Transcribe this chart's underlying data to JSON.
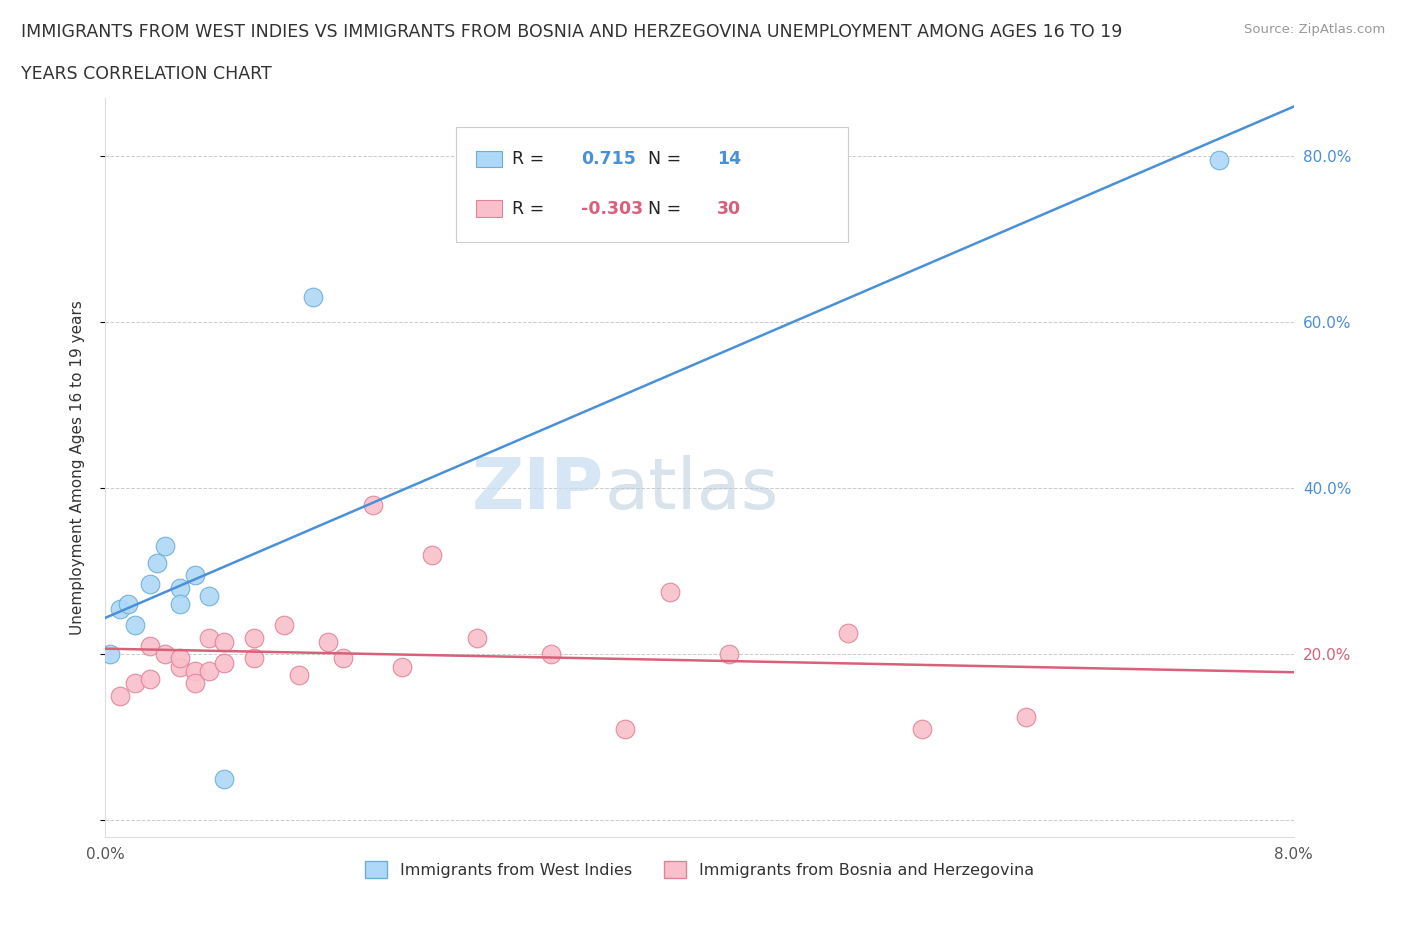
{
  "title_line1": "IMMIGRANTS FROM WEST INDIES VS IMMIGRANTS FROM BOSNIA AND HERZEGOVINA UNEMPLOYMENT AMONG AGES 16 TO 19",
  "title_line2": "YEARS CORRELATION CHART",
  "source_text": "Source: ZipAtlas.com",
  "ylabel": "Unemployment Among Ages 16 to 19 years",
  "xlim": [
    0.0,
    0.08
  ],
  "ylim": [
    -0.02,
    0.87
  ],
  "yticks": [
    0.0,
    0.2,
    0.4,
    0.6,
    0.8
  ],
  "xticks": [
    0.0,
    0.02,
    0.04,
    0.06,
    0.08
  ],
  "xtick_labels": [
    "0.0%",
    "",
    "",
    "",
    "8.0%"
  ],
  "right_ytick_labels": [
    "20.0%",
    "40.0%",
    "60.0%",
    "80.0%"
  ],
  "west_indies_R": 0.715,
  "west_indies_N": 14,
  "bosnia_R": -0.303,
  "bosnia_N": 30,
  "west_indies_color": "#ADD8F7",
  "west_indies_edge_color": "#6BAED6",
  "west_indies_line_color": "#4A90D9",
  "bosnia_color": "#F9C0CB",
  "bosnia_edge_color": "#E0829A",
  "bosnia_line_color": "#D9607A",
  "right_label_blue": "#4A90D9",
  "right_label_pink": "#D9607A",
  "background_color": "#FFFFFF",
  "watermark_color": "#D0E8F8",
  "west_indies_x": [
    0.0003,
    0.001,
    0.0015,
    0.002,
    0.003,
    0.0035,
    0.004,
    0.005,
    0.005,
    0.006,
    0.007,
    0.008,
    0.014,
    0.075
  ],
  "west_indies_y": [
    0.2,
    0.255,
    0.26,
    0.235,
    0.285,
    0.31,
    0.33,
    0.28,
    0.26,
    0.295,
    0.27,
    0.05,
    0.63,
    0.795
  ],
  "bosnia_x": [
    0.001,
    0.002,
    0.003,
    0.003,
    0.004,
    0.005,
    0.005,
    0.006,
    0.006,
    0.007,
    0.007,
    0.008,
    0.008,
    0.01,
    0.01,
    0.012,
    0.013,
    0.015,
    0.016,
    0.018,
    0.02,
    0.022,
    0.025,
    0.03,
    0.035,
    0.038,
    0.042,
    0.05,
    0.055,
    0.062
  ],
  "bosnia_y": [
    0.15,
    0.165,
    0.21,
    0.17,
    0.2,
    0.185,
    0.195,
    0.18,
    0.165,
    0.22,
    0.18,
    0.215,
    0.19,
    0.22,
    0.195,
    0.235,
    0.175,
    0.215,
    0.195,
    0.38,
    0.185,
    0.32,
    0.22,
    0.2,
    0.11,
    0.275,
    0.2,
    0.225,
    0.11,
    0.125
  ]
}
